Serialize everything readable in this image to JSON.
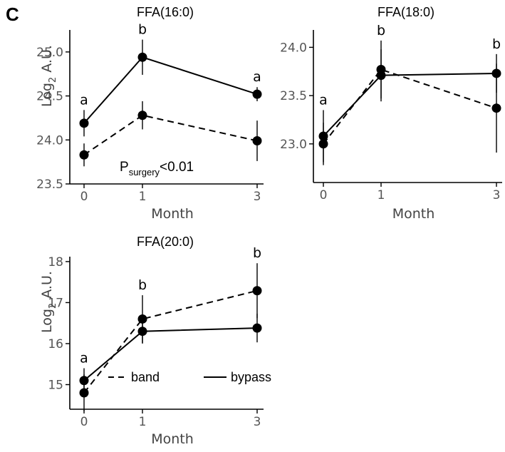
{
  "panel_label": "C",
  "legend": {
    "band": "band",
    "bypass": "bypass"
  },
  "chart_data": [
    {
      "type": "line",
      "title": "FFA(16:0)",
      "xlabel": "Month",
      "ylabel": {
        "main": "Log",
        "sub": "2",
        "rest": " A.U."
      },
      "x": [
        0,
        1,
        3
      ],
      "xticks": [
        "0",
        "1",
        "3"
      ],
      "ylim": [
        23.5,
        25.25
      ],
      "yticks": [
        "23.5",
        "24.0",
        "24.5",
        "25.0"
      ],
      "letters": [
        "a",
        "b",
        "a"
      ],
      "annotation": {
        "main": "P",
        "sub": "surgery",
        "rest": "<0.01"
      },
      "series": [
        {
          "name": "band",
          "style": "dashed",
          "y": [
            23.83,
            24.28,
            23.99
          ],
          "err": [
            0.13,
            0.16,
            0.23
          ]
        },
        {
          "name": "bypass",
          "style": "solid",
          "y": [
            24.19,
            24.94,
            24.52
          ],
          "err": [
            0.15,
            0.2,
            0.08
          ]
        }
      ]
    },
    {
      "type": "line",
      "title": "FFA(18:0)",
      "xlabel": "Month",
      "ylabel": null,
      "x": [
        0,
        1,
        3
      ],
      "xticks": [
        "0",
        "1",
        "3"
      ],
      "ylim": [
        22.6,
        24.18
      ],
      "yticks": [
        "23.0",
        "23.5",
        "24.0"
      ],
      "letters": [
        "a",
        "b",
        "b"
      ],
      "annotation": null,
      "series": [
        {
          "name": "band",
          "style": "dashed",
          "y": [
            23.0,
            23.77,
            23.37
          ],
          "err": [
            0.22,
            0.3,
            0.46
          ]
        },
        {
          "name": "bypass",
          "style": "solid",
          "y": [
            23.08,
            23.71,
            23.73
          ],
          "err": [
            0.27,
            0.27,
            0.2
          ]
        }
      ]
    },
    {
      "type": "line",
      "title": "FFA(20:0)",
      "xlabel": "Month",
      "ylabel": {
        "main": "Log",
        "sub": "2",
        "rest": " A.U."
      },
      "x": [
        0,
        1,
        3
      ],
      "xticks": [
        "0",
        "1",
        "3"
      ],
      "ylim": [
        14.4,
        18.12
      ],
      "yticks": [
        "15",
        "16",
        "17",
        "18"
      ],
      "letters": [
        "a",
        "b",
        "b"
      ],
      "annotation": null,
      "series": [
        {
          "name": "band",
          "style": "dashed",
          "y": [
            14.8,
            16.6,
            17.29
          ],
          "err": [
            0.45,
            0.58,
            0.67
          ]
        },
        {
          "name": "bypass",
          "style": "solid",
          "y": [
            15.1,
            16.3,
            16.38
          ],
          "err": [
            0.3,
            0.3,
            0.35
          ]
        }
      ]
    }
  ]
}
